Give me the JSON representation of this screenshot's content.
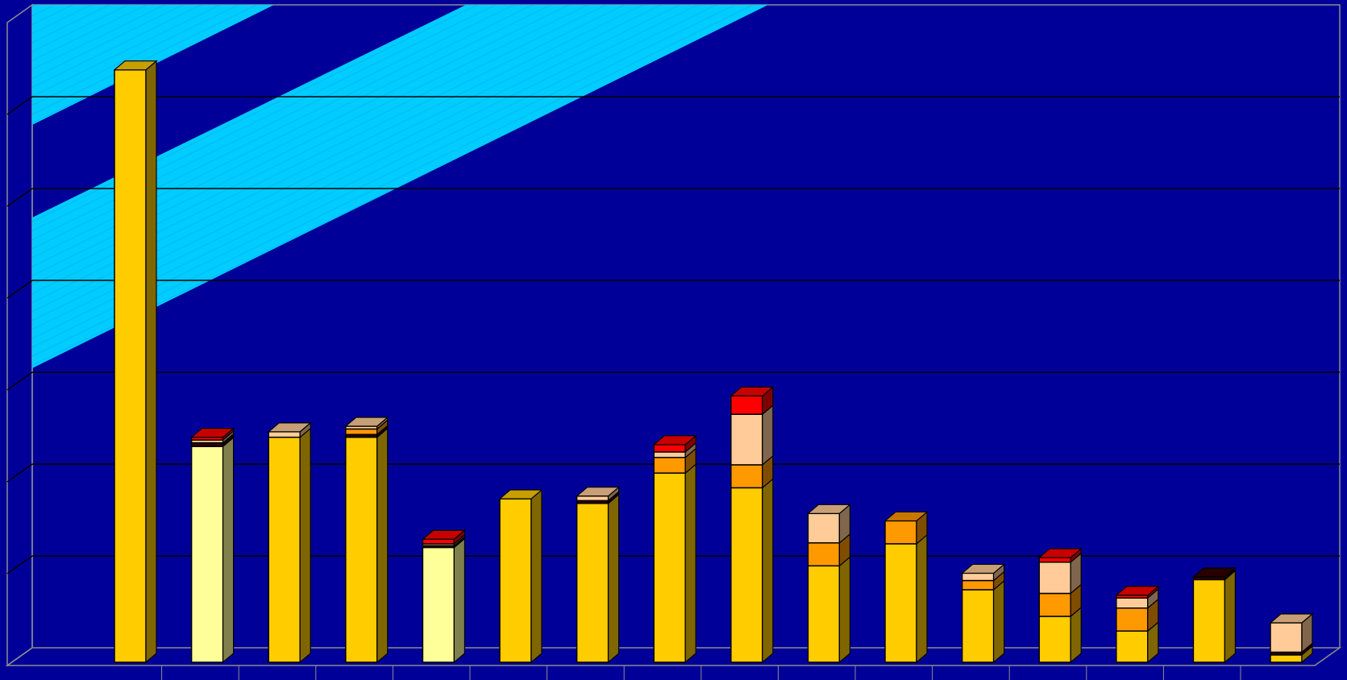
{
  "chart_data": {
    "type": "bar",
    "stacked": true,
    "three_d": true,
    "title": "",
    "xlabel": "",
    "ylabel": "",
    "ylim": [
      0,
      7
    ],
    "grid": true,
    "legend": "none",
    "categories": [
      "",
      "",
      "",
      "",
      "",
      "",
      "",
      "",
      "",
      "",
      "",
      "",
      "",
      "",
      "",
      ""
    ],
    "series": [
      {
        "color": "#ffcc00",
        "values": [
          6.45,
          0,
          2.45,
          2.45,
          0,
          1.78,
          1.73,
          2.06,
          1.9,
          1.05,
          1.29,
          0.79,
          0.5,
          0.34,
          0.9,
          0.08
        ]
      },
      {
        "color": "#ffff99",
        "values": [
          0,
          2.35,
          0,
          0,
          1.25,
          0,
          0,
          0,
          0,
          0,
          0,
          0,
          0,
          0,
          0,
          0
        ]
      },
      {
        "color": "#330000",
        "values": [
          0,
          0.04,
          0,
          0.03,
          0.02,
          0,
          0.03,
          0,
          0,
          0,
          0,
          0,
          0,
          0,
          0.03,
          0.03
        ]
      },
      {
        "color": "#ff9900",
        "values": [
          0,
          0,
          0,
          0.06,
          0,
          0,
          0,
          0.17,
          0.25,
          0.25,
          0.25,
          0.1,
          0.25,
          0.25,
          0,
          0
        ]
      },
      {
        "color": "#ffcc99",
        "values": [
          0,
          0.03,
          0.06,
          0.03,
          0.02,
          0,
          0.05,
          0.06,
          0.55,
          0.32,
          0,
          0.08,
          0.34,
          0.11,
          0,
          0.32
        ]
      },
      {
        "color": "#ff0000",
        "values": [
          0,
          0.03,
          0,
          0,
          0.05,
          0,
          0,
          0.08,
          0.2,
          0,
          0,
          0,
          0.05,
          0.03,
          0,
          0
        ]
      }
    ]
  }
}
